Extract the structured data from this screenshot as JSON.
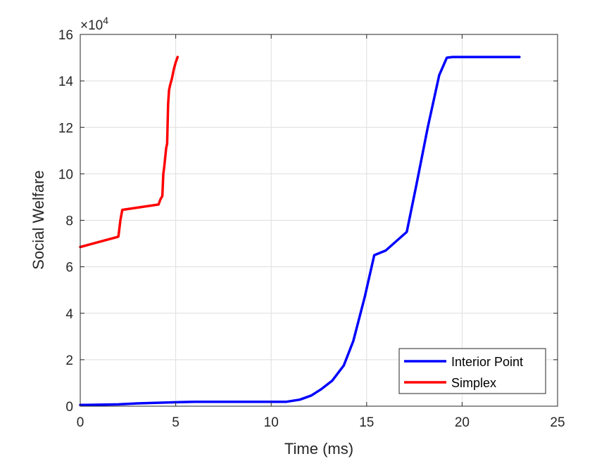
{
  "chart_data": {
    "type": "line",
    "xlabel": "Time (ms)",
    "ylabel": "Social Welfare",
    "xlim": [
      0,
      25
    ],
    "ylim": [
      0,
      160000
    ],
    "xticks": [
      0,
      5,
      10,
      15,
      20,
      25
    ],
    "xtick_labels": [
      "0",
      "5",
      "10",
      "15",
      "20",
      "25"
    ],
    "yticks": [
      0,
      20000,
      40000,
      60000,
      80000,
      100000,
      120000,
      140000,
      160000
    ],
    "ytick_labels": [
      "0",
      "2",
      "4",
      "6",
      "8",
      "10",
      "12",
      "14",
      "16"
    ],
    "y_multiplier": {
      "base": "×10",
      "exponent": "4"
    },
    "grid": true,
    "legend_position": "bottom-right",
    "series": [
      {
        "name": "Interior Point",
        "color": "#0000ff",
        "x": [
          0,
          2,
          3,
          5,
          6,
          8,
          10,
          10.8,
          11.5,
          12.1,
          12.6,
          13.2,
          13.8,
          14.3,
          14.9,
          15.4,
          16.0,
          17.1,
          17.6,
          18.2,
          18.8,
          19.2,
          19.5,
          23.0
        ],
        "y": [
          500,
          800,
          1200,
          1700,
          1900,
          1900,
          1900,
          1900,
          2800,
          4600,
          7200,
          11000,
          17500,
          28000,
          47000,
          65000,
          67000,
          75000,
          95000,
          120000,
          142500,
          150000,
          150300,
          150300
        ]
      },
      {
        "name": "Simplex",
        "color": "#ff0000",
        "x": [
          0,
          1.9,
          2.0,
          2.1,
          2.2,
          4.1,
          4.2,
          4.3,
          4.35,
          4.4,
          4.5,
          4.55,
          4.6,
          4.65,
          4.7,
          4.8,
          4.9,
          5.0,
          5.1
        ],
        "y": [
          68500,
          72700,
          73000,
          80000,
          84500,
          86800,
          89000,
          90500,
          100000,
          103000,
          111000,
          113000,
          130000,
          136000,
          138000,
          141000,
          145000,
          148000,
          150300
        ]
      }
    ]
  }
}
